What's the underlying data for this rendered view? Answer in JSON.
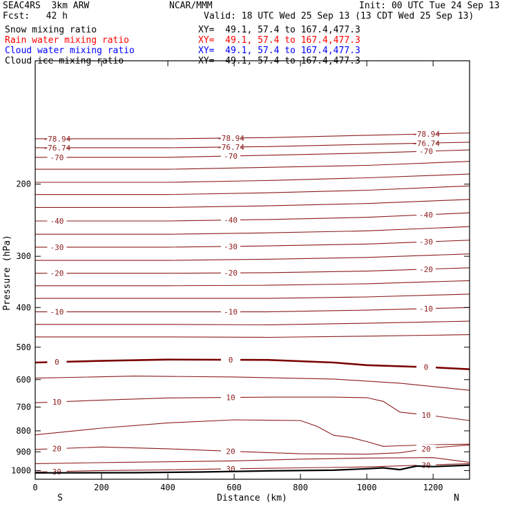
{
  "header": {
    "line1_left": "SEAC4RS  3km ARW",
    "line1_center": "NCAR/MMM",
    "line1_right": "Init: 00 UTC Tue 24 Sep 13",
    "line2_left": "Fcst:   42 h",
    "line2_right": "Valid: 18 UTC Wed 25 Sep 13 (13 CDT Wed 25 Sep 13)",
    "fields": [
      {
        "label": "Snow mixing ratio",
        "xy": "XY=  49.1, 57.4 to 167.4,477.3",
        "color": "#000000"
      },
      {
        "label": "Rain water mixing ratio",
        "xy": "XY=  49.1, 57.4 to 167.4,477.3",
        "color": "#ff0000"
      },
      {
        "label": "Cloud water mixing ratio",
        "xy": "XY=  49.1, 57.4 to 167.4,477.3",
        "color": "#0000ff"
      },
      {
        "label": "Cloud ice mixing ratio",
        "xy": "XY=  49.1, 57.4 to 167.4,477.3",
        "color": "#000000"
      }
    ]
  },
  "colors": {
    "isotherm": "#8b1a1a",
    "freezing": "#7a0000",
    "terrain": "#000000"
  },
  "chart_data": {
    "type": "line",
    "xlabel": "Distance (km)",
    "ylabel": "Pressure (hPa)",
    "xlim": [
      0,
      1310
    ],
    "ylim": [
      1050,
      100
    ],
    "y_scale": "log",
    "x_ticks": [
      0,
      200,
      400,
      600,
      800,
      1000,
      1200
    ],
    "y_ticks": [
      200,
      300,
      400,
      500,
      600,
      700,
      800,
      900,
      1000
    ],
    "x_end_labels": {
      "left": "S",
      "right": "N"
    },
    "isotherms": [
      {
        "label": "-78.94",
        "points": [
          [
            0,
            155
          ],
          [
            400,
            155
          ],
          [
            700,
            154
          ],
          [
            1000,
            152
          ],
          [
            1310,
            150
          ]
        ]
      },
      {
        "label": "-76.74",
        "points": [
          [
            0,
            163
          ],
          [
            400,
            163
          ],
          [
            700,
            162
          ],
          [
            1000,
            160
          ],
          [
            1310,
            158
          ]
        ]
      },
      {
        "label": "-70",
        "points": [
          [
            0,
            172
          ],
          [
            400,
            172
          ],
          [
            700,
            170
          ],
          [
            1000,
            168
          ],
          [
            1310,
            165
          ]
        ]
      },
      {
        "label": "",
        "points": [
          [
            0,
            184
          ],
          [
            400,
            184
          ],
          [
            700,
            182
          ],
          [
            1000,
            180
          ],
          [
            1310,
            176
          ]
        ]
      },
      {
        "label": "",
        "points": [
          [
            0,
            198
          ],
          [
            400,
            198
          ],
          [
            700,
            196
          ],
          [
            1000,
            193
          ],
          [
            1310,
            189
          ]
        ]
      },
      {
        "label": "",
        "points": [
          [
            0,
            212
          ],
          [
            400,
            212
          ],
          [
            700,
            210
          ],
          [
            1000,
            207
          ],
          [
            1310,
            202
          ]
        ]
      },
      {
        "label": "",
        "points": [
          [
            0,
            228
          ],
          [
            400,
            228
          ],
          [
            700,
            226
          ],
          [
            1000,
            223
          ],
          [
            1310,
            218
          ]
        ]
      },
      {
        "label": "-40",
        "points": [
          [
            0,
            246
          ],
          [
            400,
            246
          ],
          [
            700,
            244
          ],
          [
            1000,
            241
          ],
          [
            1310,
            235
          ]
        ]
      },
      {
        "label": "",
        "points": [
          [
            0,
            265
          ],
          [
            400,
            265
          ],
          [
            700,
            263
          ],
          [
            1000,
            260
          ],
          [
            1310,
            254
          ]
        ]
      },
      {
        "label": "-30",
        "points": [
          [
            0,
            285
          ],
          [
            400,
            285
          ],
          [
            700,
            283
          ],
          [
            1000,
            280
          ],
          [
            1310,
            274
          ]
        ]
      },
      {
        "label": "",
        "points": [
          [
            0,
            307
          ],
          [
            400,
            307
          ],
          [
            700,
            305
          ],
          [
            1000,
            302
          ],
          [
            1310,
            296
          ]
        ]
      },
      {
        "label": "-20",
        "points": [
          [
            0,
            330
          ],
          [
            400,
            330
          ],
          [
            700,
            329
          ],
          [
            1000,
            326
          ],
          [
            1310,
            320
          ]
        ]
      },
      {
        "label": "",
        "points": [
          [
            0,
            354
          ],
          [
            400,
            354
          ],
          [
            700,
            353
          ],
          [
            1000,
            350
          ],
          [
            1310,
            344
          ]
        ]
      },
      {
        "label": "",
        "points": [
          [
            0,
            380
          ],
          [
            400,
            380
          ],
          [
            700,
            380
          ],
          [
            1000,
            377
          ],
          [
            1310,
            371
          ]
        ]
      },
      {
        "label": "-10",
        "points": [
          [
            0,
            410
          ],
          [
            400,
            410
          ],
          [
            700,
            410
          ],
          [
            1000,
            406
          ],
          [
            1310,
            400
          ]
        ]
      },
      {
        "label": "",
        "points": [
          [
            0,
            440
          ],
          [
            400,
            440
          ],
          [
            700,
            441
          ],
          [
            1000,
            437
          ],
          [
            1310,
            432
          ]
        ]
      },
      {
        "label": "",
        "points": [
          [
            0,
            472
          ],
          [
            400,
            472
          ],
          [
            700,
            473
          ],
          [
            1000,
            470
          ],
          [
            1310,
            466
          ]
        ]
      },
      {
        "label": "0",
        "freezing": true,
        "points": [
          [
            0,
            545
          ],
          [
            200,
            540
          ],
          [
            400,
            536
          ],
          [
            700,
            537
          ],
          [
            900,
            545
          ],
          [
            1000,
            553
          ],
          [
            1200,
            560
          ],
          [
            1310,
            566
          ]
        ]
      },
      {
        "label": "",
        "points": [
          [
            0,
            595
          ],
          [
            300,
            588
          ],
          [
            600,
            591
          ],
          [
            900,
            598
          ],
          [
            1100,
            612
          ],
          [
            1310,
            637
          ]
        ]
      },
      {
        "label": "10",
        "points": [
          [
            0,
            683
          ],
          [
            200,
            673
          ],
          [
            400,
            665
          ],
          [
            700,
            662
          ],
          [
            900,
            662
          ],
          [
            1000,
            664
          ],
          [
            1050,
            678
          ],
          [
            1100,
            720
          ],
          [
            1200,
            735
          ],
          [
            1310,
            755
          ]
        ]
      },
      {
        "label": "",
        "points": [
          [
            0,
            818
          ],
          [
            200,
            788
          ],
          [
            400,
            765
          ],
          [
            600,
            752
          ],
          [
            800,
            755
          ],
          [
            850,
            780
          ],
          [
            900,
            820
          ],
          [
            950,
            830
          ],
          [
            1000,
            850
          ],
          [
            1050,
            873
          ],
          [
            1100,
            870
          ],
          [
            1200,
            865
          ],
          [
            1310,
            862
          ]
        ]
      },
      {
        "label": "20",
        "points": [
          [
            0,
            888
          ],
          [
            200,
            876
          ],
          [
            400,
            885
          ],
          [
            600,
            898
          ],
          [
            800,
            910
          ],
          [
            1000,
            912
          ],
          [
            1100,
            905
          ],
          [
            1200,
            880
          ],
          [
            1310,
            866
          ]
        ]
      },
      {
        "label": "",
        "points": [
          [
            0,
            962
          ],
          [
            250,
            955
          ],
          [
            400,
            952
          ],
          [
            600,
            947
          ],
          [
            800,
            938
          ],
          [
            1000,
            932
          ],
          [
            1200,
            930
          ],
          [
            1310,
            955
          ]
        ]
      },
      {
        "label": "30",
        "points": [
          [
            0,
            1008
          ],
          [
            200,
            1000
          ],
          [
            400,
            996
          ],
          [
            600,
            990
          ],
          [
            800,
            985
          ],
          [
            1000,
            980
          ],
          [
            1200,
            968
          ],
          [
            1310,
            962
          ]
        ]
      }
    ],
    "terrain": [
      [
        0,
        1013
      ],
      [
        300,
        1012
      ],
      [
        500,
        1008
      ],
      [
        700,
        1002
      ],
      [
        900,
        998
      ],
      [
        1000,
        990
      ],
      [
        1050,
        985
      ],
      [
        1100,
        995
      ],
      [
        1150,
        975
      ],
      [
        1200,
        978
      ],
      [
        1310,
        970
      ]
    ]
  }
}
